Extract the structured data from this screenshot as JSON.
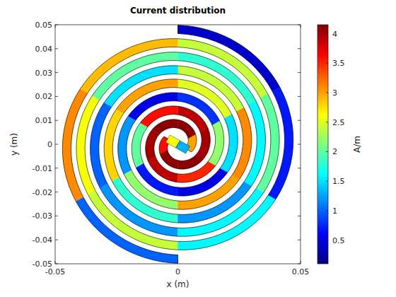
{
  "chart_data": {
    "type": "spiral_current",
    "title": "Current distribution",
    "x_label": "x (m)",
    "y_label": "y (m)",
    "xlim": [
      -0.05,
      0.05
    ],
    "ylim": [
      -0.05,
      0.05
    ],
    "xticks": [
      -0.05,
      0,
      0.05
    ],
    "yticks": [
      -0.05,
      -0.04,
      -0.03,
      -0.02,
      -0.01,
      0,
      0.01,
      0.02,
      0.03,
      0.04,
      0.05
    ],
    "spiral": {
      "start_deg": 150,
      "end_deg": 1530,
      "segment_deg": 60,
      "growth": 0.0018,
      "width": 0.0035
    },
    "arms": [
      {
        "values": [
          3.6,
          4.1,
          4.1,
          4.0,
          3.9,
          3.6,
          2.0,
          0.7,
          0.5,
          1.5,
          2.5,
          3.0,
          2.8,
          1.8,
          1.2,
          1.6,
          1.8,
          2.0,
          2.6,
          2.4,
          1.6,
          0.7,
          0.4
        ]
      },
      {
        "values": [
          3.0,
          4.1,
          4.1,
          4.0,
          3.9,
          3.5,
          2.2,
          0.8,
          0.5,
          1.2,
          2.2,
          3.0,
          3.1,
          2.4,
          1.5,
          1.0,
          1.2,
          1.6,
          2.0,
          2.4,
          2.9,
          3.1,
          1.0
        ]
      }
    ],
    "feed_values": [
      2.6,
      1.3
    ],
    "colorbar": {
      "label": "A/m",
      "lim": [
        0.1,
        4.15
      ],
      "ticks": [
        0.5,
        1,
        1.5,
        2,
        2.5,
        3,
        3.5,
        4
      ]
    }
  }
}
